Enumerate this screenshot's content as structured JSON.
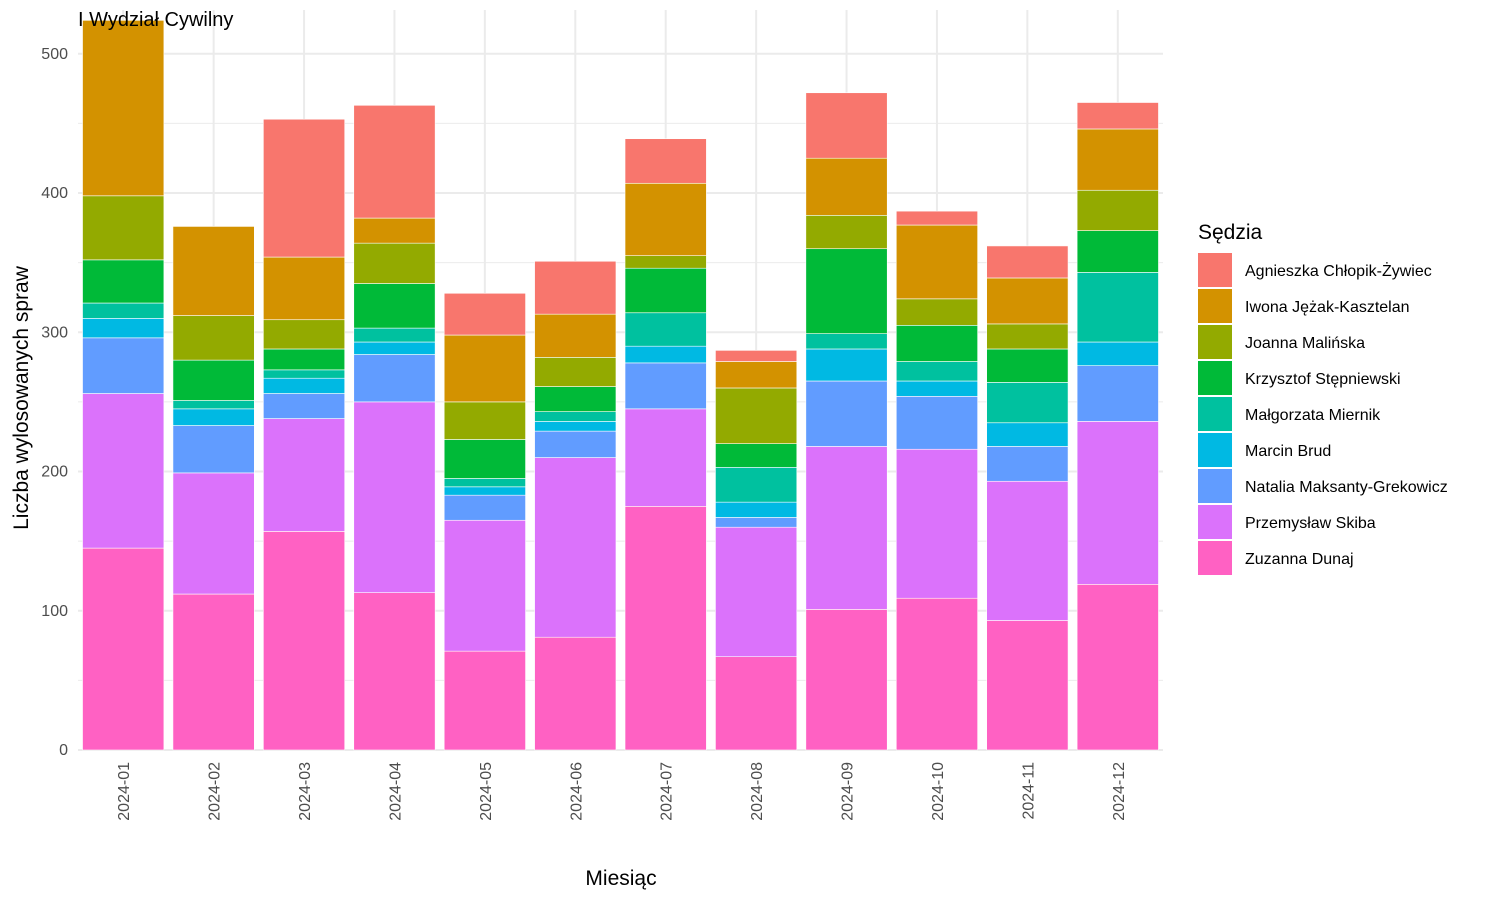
{
  "chart_data": {
    "type": "bar",
    "stacked": true,
    "title": "I Wydział Cywilny",
    "xlabel": "Miesiąc",
    "ylabel": "Liczba wylosowanych spraw",
    "ylim": [
      0,
      530
    ],
    "yticks": [
      0,
      100,
      200,
      300,
      400,
      500
    ],
    "grid": true,
    "legend": {
      "title": "Sędzia",
      "position": "right"
    },
    "categories": [
      "2024-01",
      "2024-02",
      "2024-03",
      "2024-04",
      "2024-05",
      "2024-06",
      "2024-07",
      "2024-08",
      "2024-09",
      "2024-10",
      "2024-11",
      "2024-12"
    ],
    "series": [
      {
        "name": "Zuzanna Dunaj",
        "color": "#FF61C3",
        "values": [
          145,
          112,
          157,
          113,
          71,
          81,
          175,
          67,
          101,
          109,
          93,
          119
        ]
      },
      {
        "name": "Przemysław Skiba",
        "color": "#DB72FB",
        "values": [
          111,
          87,
          81,
          137,
          94,
          129,
          70,
          93,
          117,
          107,
          100,
          117
        ]
      },
      {
        "name": "Natalia Maksanty-Grekowicz",
        "color": "#619CFF",
        "values": [
          40,
          34,
          18,
          34,
          18,
          19,
          33,
          7,
          47,
          38,
          25,
          40
        ]
      },
      {
        "name": "Marcin Brud",
        "color": "#00B9E3",
        "values": [
          14,
          12,
          11,
          9,
          6,
          7,
          12,
          11,
          23,
          11,
          17,
          17
        ]
      },
      {
        "name": "Małgorzata Miernik",
        "color": "#00C19F",
        "values": [
          11,
          6,
          6,
          10,
          6,
          7,
          24,
          25,
          11,
          14,
          29,
          50
        ]
      },
      {
        "name": "Krzysztof Stępniewski",
        "color": "#00BA38",
        "values": [
          31,
          29,
          15,
          32,
          28,
          18,
          32,
          17,
          61,
          26,
          24,
          30
        ]
      },
      {
        "name": "Joanna Malińska",
        "color": "#93AA00",
        "values": [
          46,
          32,
          21,
          29,
          27,
          21,
          9,
          40,
          24,
          19,
          18,
          29
        ]
      },
      {
        "name": "Iwona Jężak-Kasztelan",
        "color": "#D39200",
        "values": [
          126,
          64,
          45,
          18,
          48,
          31,
          52,
          19,
          41,
          53,
          33,
          44
        ]
      },
      {
        "name": "Agnieszka Chłopik-Żywiec",
        "color": "#F8766D",
        "values": [
          0,
          0,
          99,
          81,
          30,
          38,
          32,
          8,
          47,
          10,
          23,
          19
        ]
      }
    ]
  }
}
